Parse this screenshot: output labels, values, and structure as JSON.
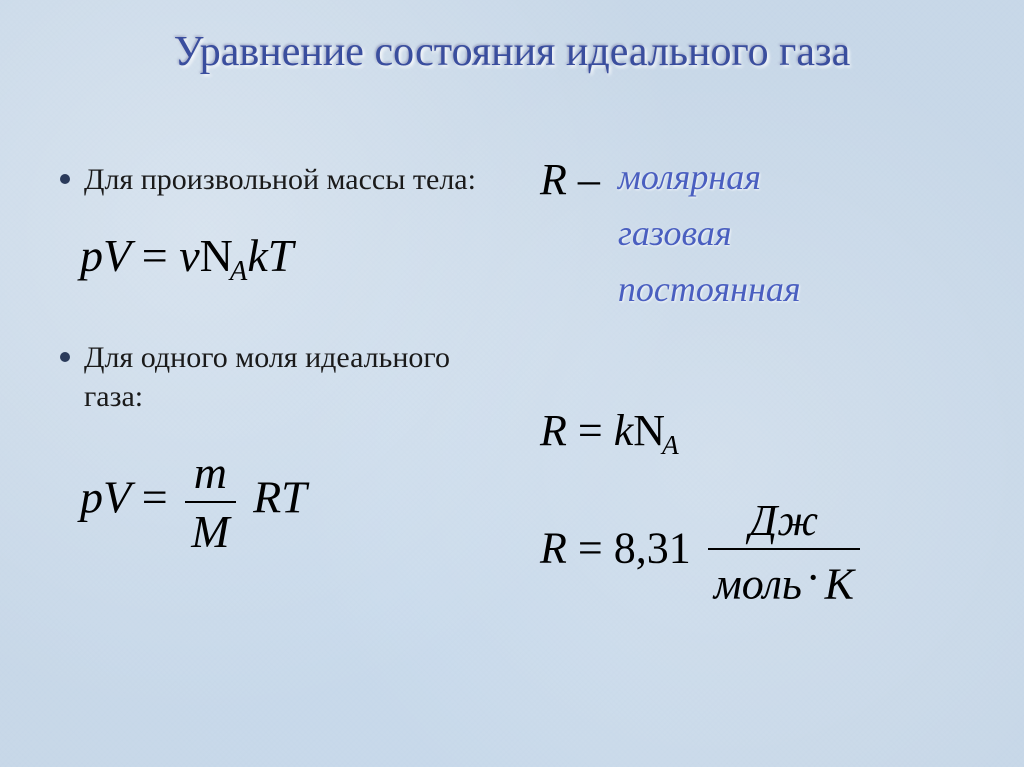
{
  "title": "Уравнение состояния идеального газа",
  "bullet1": "Для произвольной массы тела:",
  "bullet2": "Для одного моля идеального газа:",
  "eq1": {
    "lhs": "pV",
    "rhs_nu": "ν",
    "rhs_N": "N",
    "rhs_sub": "A",
    "rhs_k": "k",
    "rhs_T": "T"
  },
  "eq2": {
    "lhs": "pV",
    "num": "m",
    "den": "M",
    "RT": "RT"
  },
  "R_label": {
    "sym": "R –",
    "l1": "молярная",
    "l2": "газовая",
    "l3": "постоянная"
  },
  "R_eq1": {
    "R": "R",
    "eq": "=",
    "k": "k",
    "N": "N",
    "sub": "A"
  },
  "R_eq2": {
    "R": "R",
    "eq": "=",
    "val": "8,31",
    "num": "Дж",
    "den_l": "моль",
    "den_r": "К"
  }
}
